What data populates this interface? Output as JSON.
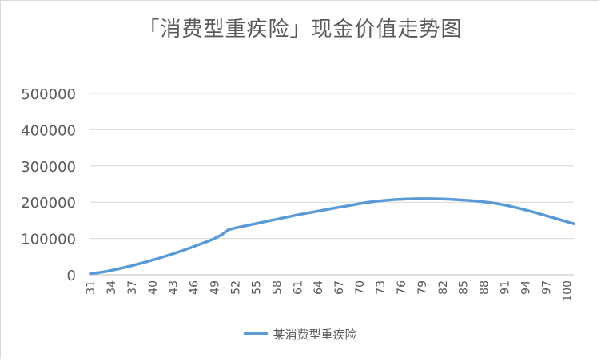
{
  "chart_data": {
    "type": "line",
    "title": "「消费型重疾险」现金价值走势图",
    "xlabel": "",
    "ylabel": "",
    "ylim": [
      0,
      500000
    ],
    "yticks": [
      0,
      100000,
      200000,
      300000,
      400000,
      500000
    ],
    "grid": true,
    "legend_position": "bottom",
    "x_tick_labels": [
      "31",
      "34",
      "37",
      "40",
      "43",
      "46",
      "49",
      "52",
      "55",
      "58",
      "61",
      "64",
      "67",
      "70",
      "73",
      "76",
      "79",
      "82",
      "85",
      "88",
      "91",
      "94",
      "97",
      "100"
    ],
    "x": [
      31,
      32,
      33,
      34,
      35,
      36,
      37,
      38,
      39,
      40,
      41,
      42,
      43,
      44,
      45,
      46,
      47,
      48,
      49,
      50,
      51,
      52,
      53,
      54,
      55,
      56,
      57,
      58,
      59,
      60,
      61,
      62,
      63,
      64,
      65,
      66,
      67,
      68,
      69,
      70,
      71,
      72,
      73,
      74,
      75,
      76,
      77,
      78,
      79,
      80,
      81,
      82,
      83,
      84,
      85,
      86,
      87,
      88,
      89,
      90,
      91,
      92,
      93,
      94,
      95,
      96,
      97,
      98,
      99,
      100,
      101
    ],
    "series": [
      {
        "name": "某消费型重疾险",
        "color": "#5b9bd5",
        "values": [
          3000,
          5500,
          8000,
          12000,
          16000,
          20500,
          25000,
          30000,
          35000,
          40500,
          46000,
          52000,
          58000,
          64500,
          71000,
          78000,
          85000,
          92000,
          100000,
          110000,
          124000,
          129000,
          133000,
          137000,
          141000,
          145000,
          149000,
          153000,
          157000,
          161000,
          165000,
          168500,
          172000,
          175500,
          179000,
          182500,
          186000,
          189000,
          192500,
          196000,
          199000,
          201500,
          203500,
          205500,
          207000,
          208000,
          208800,
          209200,
          209500,
          209400,
          209100,
          208600,
          207800,
          206800,
          205600,
          204200,
          202600,
          200800,
          198500,
          195500,
          192000,
          188000,
          183500,
          178500,
          173500,
          168000,
          162500,
          157000,
          151500,
          146000,
          140500
        ]
      }
    ]
  }
}
